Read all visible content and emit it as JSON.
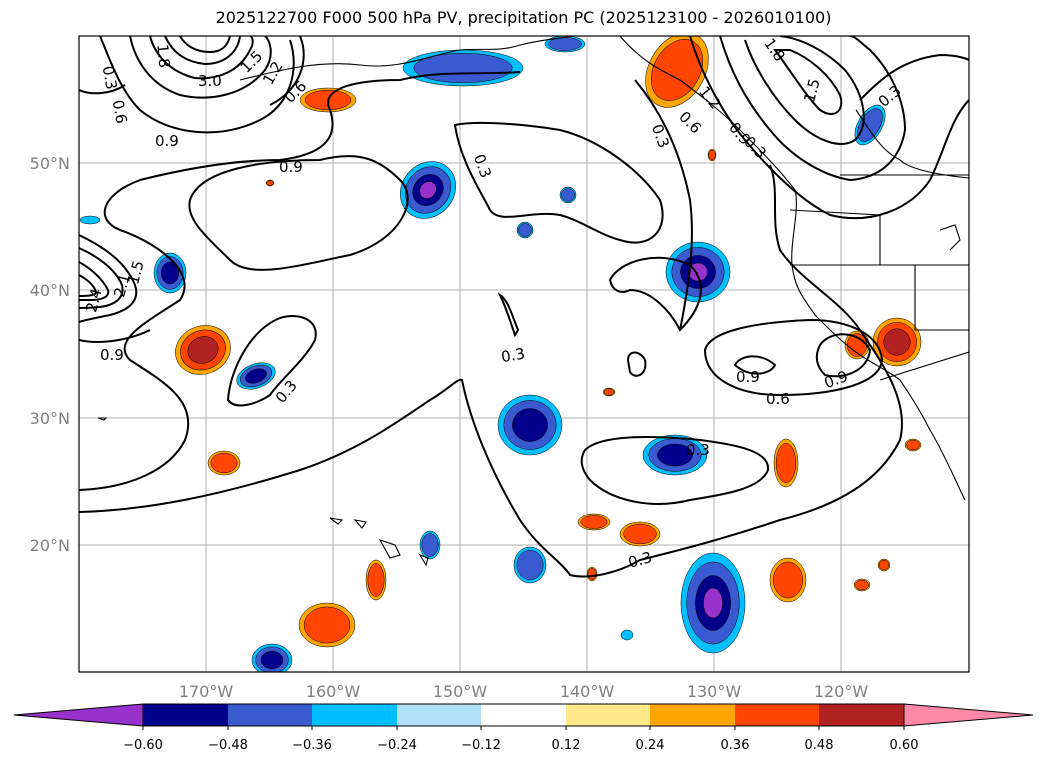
{
  "title": "2025122700 F000 500 hPa PV, precipitation PC (2025123100 - 2026010100)",
  "lat_labels": [
    "50°N",
    "40°N",
    "30°N",
    "20°N"
  ],
  "lon_labels": [
    "170°W",
    "160°W",
    "150°W",
    "140°W",
    "130°W",
    "120°W"
  ],
  "contour_labels": [
    "0.3",
    "0.6",
    "0.9",
    "3.0",
    "1.8",
    "1.2",
    "1.5",
    "0.6",
    "0.9",
    "0.3",
    "0.3",
    "0.9",
    "0.3",
    "0.9",
    "0.6",
    "0.9",
    "0.3",
    "0.3",
    "0.3",
    "0.3",
    "1.8",
    "1.5",
    "1.2",
    "0.9",
    "0.6",
    "0.3",
    "2.4",
    "2.1",
    "1.5"
  ],
  "colorbar": {
    "ticks": [
      "−0.60",
      "−0.48",
      "−0.36",
      "−0.24",
      "−0.12",
      "0.12",
      "0.24",
      "0.36",
      "0.48",
      "0.60"
    ],
    "colors": [
      "#9932cc",
      "#00008b",
      "#3a5bd0",
      "#00bfff",
      "#b0e0fa",
      "#ffffff",
      "#ffe98a",
      "#ffa500",
      "#ff4500",
      "#b22222",
      "#ff88aa"
    ]
  },
  "colors": {
    "neg_outer": "#00bfff",
    "neg_mid": "#3a5bd0",
    "neg_inner": "#00008b",
    "neg_core": "#9932cc",
    "pos_outer": "#ffa500",
    "pos_mid": "#ff4500",
    "pos_inner": "#b22222"
  }
}
